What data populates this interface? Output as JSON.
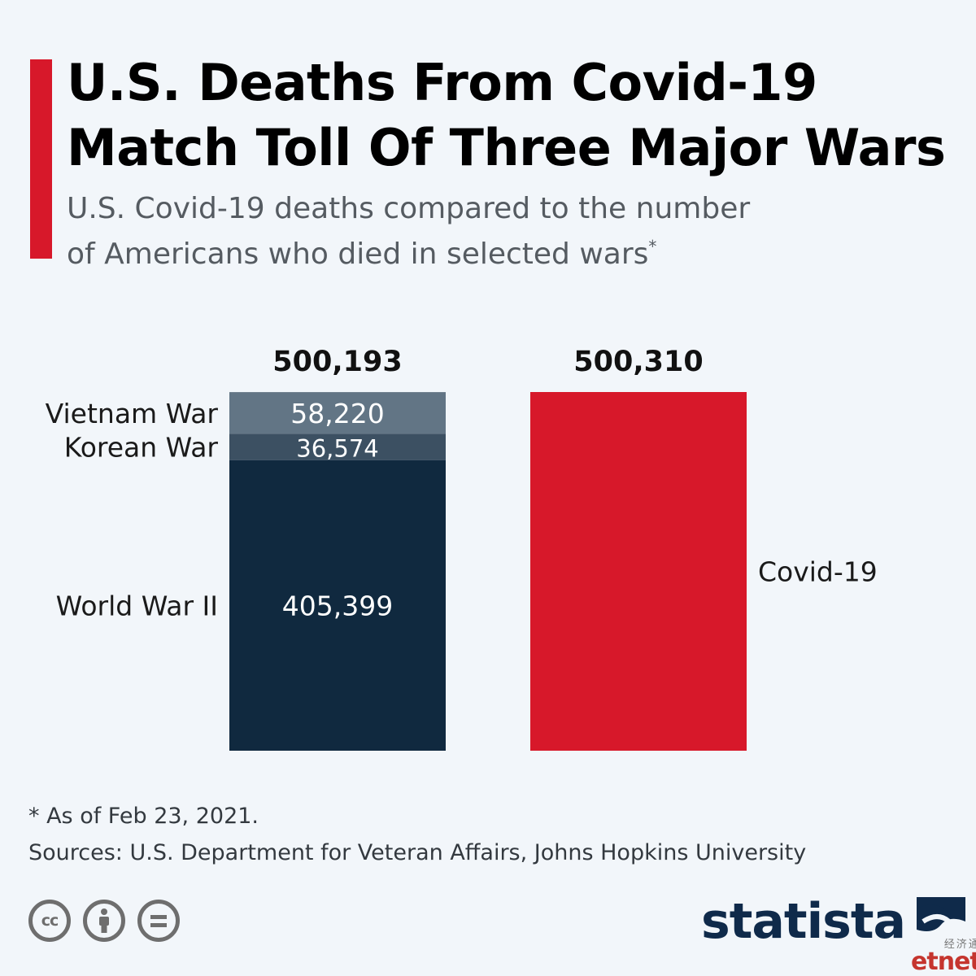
{
  "header": {
    "title_line1": "U.S. Deaths From Covid-19",
    "title_line2": "Match Toll Of Three Major Wars",
    "subtitle_line1": "U.S. Covid-19 deaths compared to the number",
    "subtitle_line2": "of Americans who died in selected wars",
    "subtitle_mark": "*",
    "accent_color": "#d7182a"
  },
  "chart_data": {
    "type": "bar",
    "stacked": true,
    "categories": [
      "Wars",
      "Covid-19"
    ],
    "totals": [
      {
        "value": 500193,
        "label": "500,193"
      },
      {
        "value": 500310,
        "label": "500,310"
      }
    ],
    "series": [
      {
        "name": "World War II",
        "values": [
          405399,
          0
        ],
        "labels": [
          "405,399",
          ""
        ],
        "color": "#10293f"
      },
      {
        "name": "Korean War",
        "values": [
          36574,
          0
        ],
        "labels": [
          "36,574",
          ""
        ],
        "color": "#3c5062"
      },
      {
        "name": "Vietnam War",
        "values": [
          58220,
          0
        ],
        "labels": [
          "58,220",
          ""
        ],
        "color": "#627585"
      },
      {
        "name": "Covid-19",
        "values": [
          0,
          500310
        ],
        "labels": [
          "",
          ""
        ],
        "color": "#d7182a"
      }
    ],
    "title": "",
    "xlabel": "",
    "ylabel": "",
    "ylim": [
      0,
      500310
    ],
    "grid": false
  },
  "footer": {
    "footnote": "* As of Feb 23, 2021.",
    "sources": "Sources: U.S. Department for Veteran Affairs, Johns Hopkins University",
    "cc_label": "cc",
    "brand": "statista",
    "brand_color": "#0f2a4a"
  },
  "watermark": {
    "chinese": "经济通",
    "latin": "etnet"
  }
}
